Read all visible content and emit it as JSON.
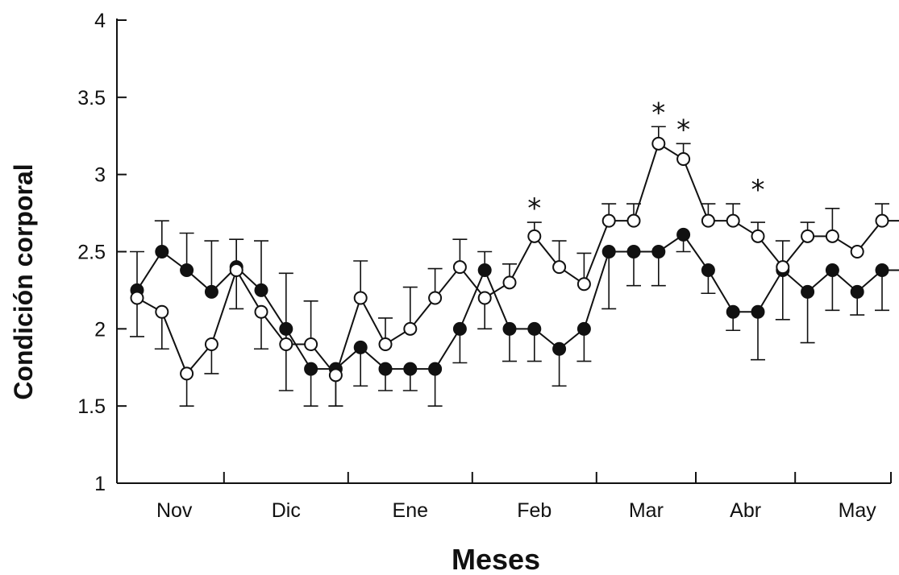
{
  "chart_data": {
    "type": "line",
    "title": "",
    "xlabel": "Meses",
    "ylabel": "Condición corporal",
    "ylim": [
      1,
      4
    ],
    "yticks": [
      1,
      1.5,
      2,
      2.5,
      3,
      3.5,
      4
    ],
    "ytick_labels": [
      "1",
      "1.5",
      "2",
      "2.5",
      "3",
      "3.5",
      "4"
    ],
    "months": [
      "Nov",
      "Dic",
      "Ene",
      "Feb",
      "Mar",
      "Abr",
      "May"
    ],
    "month_point_ranges": [
      [
        0,
        3
      ],
      [
        4,
        8
      ],
      [
        9,
        13
      ],
      [
        14,
        18
      ],
      [
        19,
        22
      ],
      [
        23,
        26
      ],
      [
        27,
        31
      ]
    ],
    "x": [
      0,
      1,
      2,
      3,
      4,
      5,
      6,
      7,
      8,
      9,
      10,
      11,
      12,
      13,
      14,
      15,
      16,
      17,
      18,
      19,
      20,
      21,
      22,
      23,
      24,
      25,
      26,
      27,
      28,
      29,
      30,
      31
    ],
    "grid": false,
    "legend": "none",
    "series": [
      {
        "marker": "filled-circle",
        "color": "#111111",
        "values": [
          2.25,
          2.5,
          2.38,
          2.24,
          2.4,
          2.25,
          2.0,
          1.74,
          1.74,
          1.88,
          1.74,
          1.74,
          1.74,
          2.0,
          2.38,
          2.0,
          2.0,
          1.87,
          2.0,
          2.5,
          2.5,
          2.5,
          2.61,
          2.38,
          2.11,
          2.11,
          2.38,
          2.24,
          2.38,
          2.24,
          2.38,
          2.38
        ],
        "error_bars": [
          [
            2.25,
            2.5
          ],
          [
            2.5,
            2.7
          ],
          [
            2.38,
            2.62
          ],
          [
            2.24,
            2.57
          ],
          [
            2.13,
            2.58
          ],
          [
            2.25,
            2.57
          ],
          [
            1.6,
            2.0
          ],
          [
            1.5,
            1.74
          ],
          [
            1.5,
            1.74
          ],
          [
            1.63,
            1.88
          ],
          [
            1.6,
            1.74
          ],
          [
            1.6,
            1.74
          ],
          [
            1.5,
            1.74
          ],
          [
            1.78,
            2.0
          ],
          [
            2.38,
            2.5
          ],
          [
            1.79,
            2.0
          ],
          [
            1.79,
            2.0
          ],
          [
            1.63,
            1.87
          ],
          [
            1.79,
            2.0
          ],
          [
            2.13,
            2.5
          ],
          [
            2.28,
            2.5
          ],
          [
            2.28,
            2.5
          ],
          [
            2.5,
            2.61
          ],
          [
            2.23,
            2.38
          ],
          [
            1.99,
            2.11
          ],
          [
            1.8,
            2.11
          ],
          [
            2.06,
            2.38
          ],
          [
            1.91,
            2.24
          ],
          [
            2.12,
            2.38
          ],
          [
            2.09,
            2.24
          ],
          [
            2.12,
            2.38
          ],
          [
            2.12,
            2.38
          ]
        ]
      },
      {
        "marker": "open-circle",
        "color": "#111111",
        "values": [
          2.2,
          2.11,
          1.71,
          1.9,
          2.38,
          2.11,
          1.9,
          1.9,
          1.7,
          2.2,
          1.9,
          2.0,
          2.2,
          2.4,
          2.2,
          2.3,
          2.6,
          2.4,
          2.29,
          2.7,
          2.7,
          3.2,
          3.1,
          2.7,
          2.7,
          2.6,
          2.4,
          2.6,
          2.6,
          2.5,
          2.7,
          2.7
        ],
        "error_bars": [
          [
            1.95,
            2.2
          ],
          [
            1.87,
            2.11
          ],
          [
            1.5,
            1.71
          ],
          [
            1.71,
            1.9
          ],
          [
            2.38,
            2.58
          ],
          [
            1.87,
            2.11
          ],
          [
            1.9,
            2.36
          ],
          [
            1.9,
            2.18
          ],
          [
            1.5,
            1.7
          ],
          [
            2.2,
            2.44
          ],
          [
            1.9,
            2.07
          ],
          [
            2.0,
            2.27
          ],
          [
            2.2,
            2.39
          ],
          [
            2.4,
            2.58
          ],
          [
            2.0,
            2.2
          ],
          [
            2.3,
            2.42
          ],
          [
            2.6,
            2.69
          ],
          [
            2.4,
            2.57
          ],
          [
            2.29,
            2.49
          ],
          [
            2.7,
            2.81
          ],
          [
            2.7,
            2.81
          ],
          [
            3.2,
            3.31
          ],
          [
            3.1,
            3.2
          ],
          [
            2.7,
            2.81
          ],
          [
            2.7,
            2.81
          ],
          [
            2.6,
            2.69
          ],
          [
            2.4,
            2.57
          ],
          [
            2.6,
            2.69
          ],
          [
            2.6,
            2.78
          ],
          [
            2.5,
            2.5
          ],
          [
            2.7,
            2.81
          ],
          [
            2.7,
            2.81
          ]
        ]
      }
    ],
    "annotations": [
      {
        "text": "*",
        "x": 16,
        "y": 2.69
      },
      {
        "text": "*",
        "x": 21,
        "y": 3.31
      },
      {
        "text": "*",
        "x": 22,
        "y": 3.2
      },
      {
        "text": "*",
        "x": 25,
        "y": 2.81
      }
    ]
  }
}
